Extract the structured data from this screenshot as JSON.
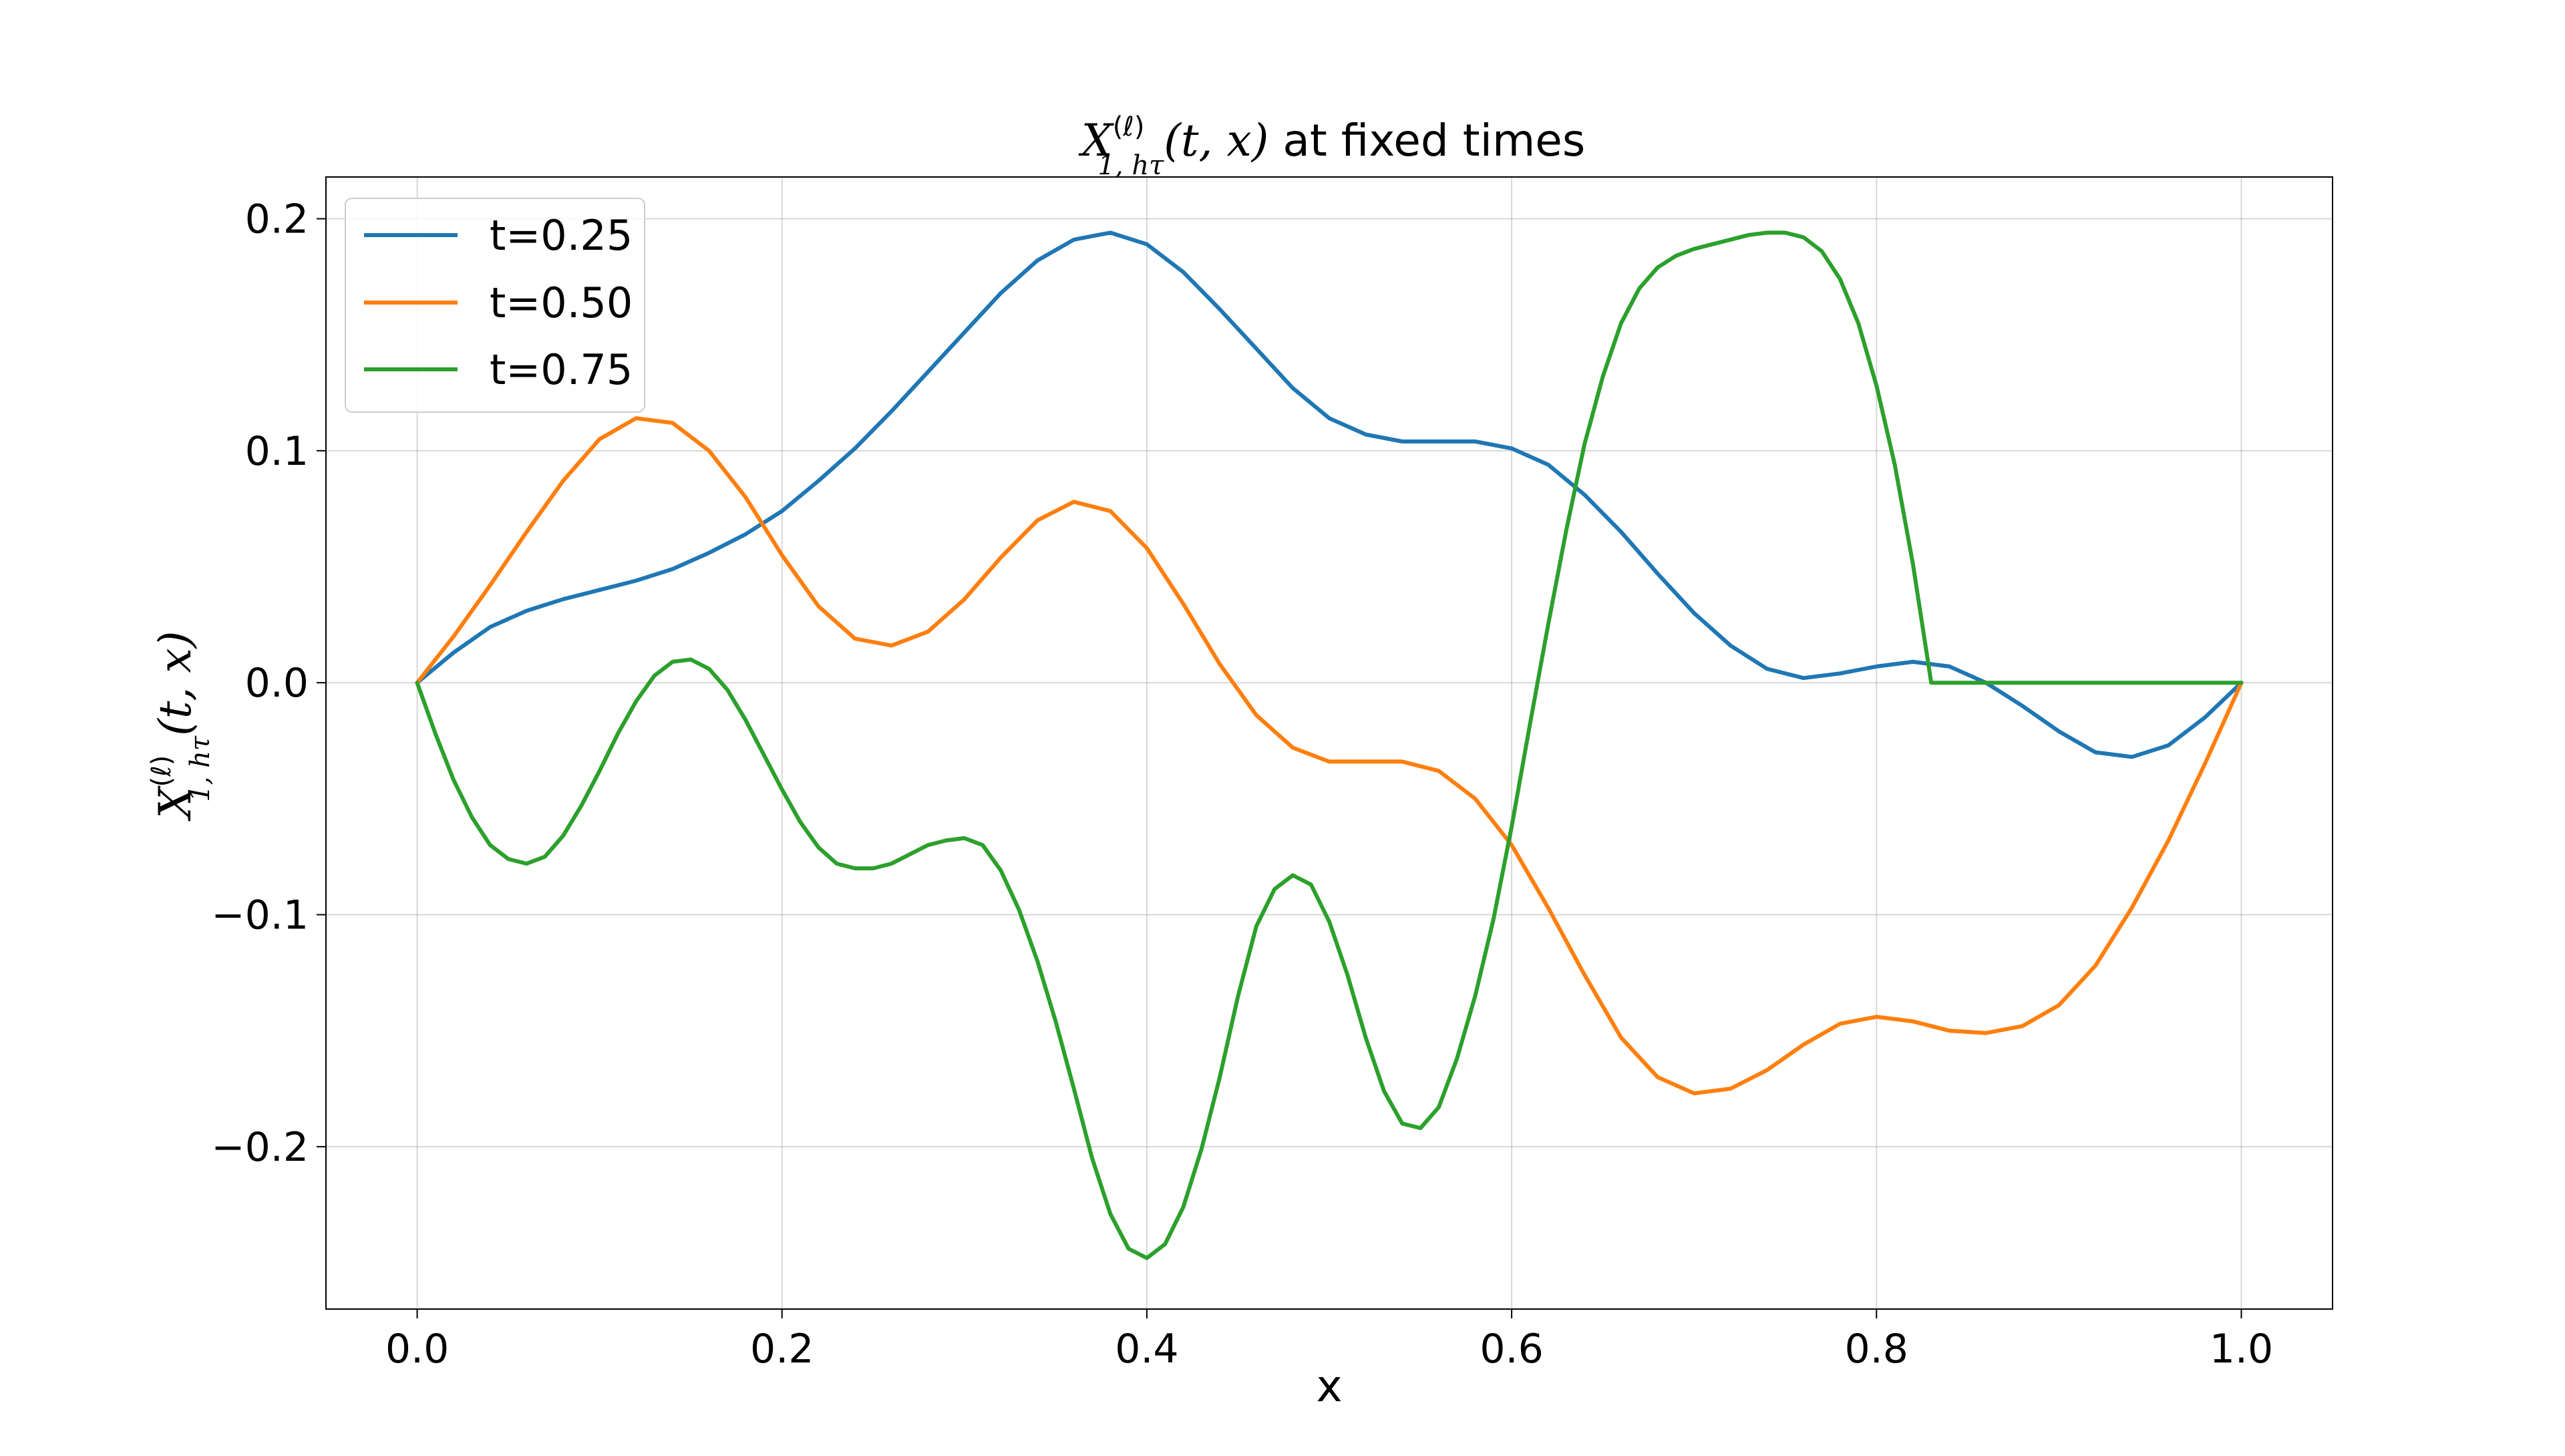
{
  "chart_data": {
    "type": "line",
    "title": {
      "prefix": "",
      "symbol": "X",
      "superscript": "(ℓ)",
      "subscript": "1, hτ",
      "args": "(t, x)",
      "suffix": " at fixed times"
    },
    "xlabel": "x",
    "ylabel": {
      "symbol": "X",
      "superscript": "(ℓ)",
      "subscript": "1, hτ",
      "args": "(t, x)"
    },
    "xlim": [
      -0.05,
      1.05
    ],
    "ylim": [
      -0.27,
      0.218
    ],
    "xticks": [
      0.0,
      0.2,
      0.4,
      0.6,
      0.8,
      1.0
    ],
    "xtick_labels": [
      "0.0",
      "0.2",
      "0.4",
      "0.6",
      "0.8",
      "1.0"
    ],
    "yticks": [
      -0.2,
      -0.1,
      0.0,
      0.1,
      0.2
    ],
    "ytick_labels": [
      "−0.2",
      "−0.1",
      "0.0",
      "0.1",
      "0.2"
    ],
    "grid": true,
    "legend_position": "top-left",
    "series": [
      {
        "name": "t=0.25",
        "color": "#1f77b4",
        "x": [
          0.0,
          0.02,
          0.04,
          0.06,
          0.08,
          0.1,
          0.12,
          0.14,
          0.16,
          0.18,
          0.2,
          0.22,
          0.24,
          0.26,
          0.28,
          0.3,
          0.32,
          0.34,
          0.36,
          0.38,
          0.4,
          0.42,
          0.44,
          0.46,
          0.48,
          0.5,
          0.52,
          0.54,
          0.56,
          0.58,
          0.6,
          0.62,
          0.64,
          0.66,
          0.68,
          0.7,
          0.72,
          0.74,
          0.76,
          0.78,
          0.8,
          0.82,
          0.84,
          0.86,
          0.88,
          0.9,
          0.92,
          0.94,
          0.96,
          0.98,
          1.0
        ],
        "y": [
          0.0,
          0.013,
          0.024,
          0.031,
          0.036,
          0.04,
          0.044,
          0.049,
          0.056,
          0.064,
          0.074,
          0.087,
          0.101,
          0.117,
          0.134,
          0.151,
          0.168,
          0.182,
          0.191,
          0.194,
          0.189,
          0.177,
          0.161,
          0.144,
          0.127,
          0.114,
          0.107,
          0.104,
          0.104,
          0.104,
          0.101,
          0.094,
          0.081,
          0.065,
          0.047,
          0.03,
          0.016,
          0.006,
          0.002,
          0.004,
          0.007,
          0.009,
          0.007,
          0.0,
          -0.01,
          -0.021,
          -0.03,
          -0.032,
          -0.027,
          -0.015,
          0.0
        ]
      },
      {
        "name": "t=0.50",
        "color": "#ff7f0e",
        "x": [
          0.0,
          0.02,
          0.04,
          0.06,
          0.08,
          0.1,
          0.12,
          0.14,
          0.16,
          0.18,
          0.2,
          0.22,
          0.24,
          0.26,
          0.28,
          0.3,
          0.32,
          0.34,
          0.36,
          0.38,
          0.4,
          0.42,
          0.44,
          0.46,
          0.48,
          0.5,
          0.52,
          0.54,
          0.56,
          0.58,
          0.6,
          0.62,
          0.64,
          0.66,
          0.68,
          0.7,
          0.72,
          0.74,
          0.76,
          0.78,
          0.8,
          0.82,
          0.84,
          0.86,
          0.88,
          0.9,
          0.92,
          0.94,
          0.96,
          0.98,
          1.0
        ],
        "y": [
          0.0,
          0.02,
          0.042,
          0.065,
          0.087,
          0.105,
          0.114,
          0.112,
          0.1,
          0.08,
          0.055,
          0.033,
          0.019,
          0.016,
          0.022,
          0.036,
          0.054,
          0.07,
          0.078,
          0.074,
          0.058,
          0.034,
          0.008,
          -0.014,
          -0.028,
          -0.034,
          -0.034,
          -0.034,
          -0.038,
          -0.05,
          -0.07,
          -0.097,
          -0.126,
          -0.153,
          -0.17,
          -0.177,
          -0.175,
          -0.167,
          -0.156,
          -0.147,
          -0.144,
          -0.146,
          -0.15,
          -0.151,
          -0.148,
          -0.139,
          -0.122,
          -0.097,
          -0.068,
          -0.035,
          0.0
        ]
      },
      {
        "name": "t=0.75",
        "color": "#2ca02c",
        "x": [
          0.0,
          0.01,
          0.02,
          0.03,
          0.04,
          0.05,
          0.06,
          0.07,
          0.08,
          0.09,
          0.1,
          0.11,
          0.12,
          0.13,
          0.14,
          0.15,
          0.16,
          0.17,
          0.18,
          0.19,
          0.2,
          0.21,
          0.22,
          0.23,
          0.24,
          0.25,
          0.26,
          0.27,
          0.28,
          0.29,
          0.3,
          0.31,
          0.32,
          0.33,
          0.34,
          0.35,
          0.36,
          0.37,
          0.38,
          0.39,
          0.4,
          0.41,
          0.42,
          0.43,
          0.44,
          0.45,
          0.46,
          0.47,
          0.48,
          0.49,
          0.5,
          0.51,
          0.52,
          0.53,
          0.54,
          0.55,
          0.56,
          0.57,
          0.58,
          0.59,
          0.6,
          0.61,
          0.62,
          0.63,
          0.64,
          0.65,
          0.66,
          0.67,
          0.68,
          0.69,
          0.7,
          0.71,
          0.72,
          0.73,
          0.74,
          0.75,
          0.76,
          0.77,
          0.78,
          0.79,
          0.8,
          0.81,
          0.82,
          0.83,
          0.84,
          0.85,
          0.86,
          0.87,
          0.88,
          0.89,
          0.9,
          0.91,
          0.92,
          0.93,
          0.94,
          0.95,
          0.96,
          0.97,
          0.98,
          0.99,
          1.0
        ],
        "y": [
          0.0,
          -0.022,
          -0.042,
          -0.058,
          -0.07,
          -0.076,
          -0.078,
          -0.075,
          -0.066,
          -0.053,
          -0.038,
          -0.022,
          -0.008,
          0.003,
          0.009,
          0.01,
          0.006,
          -0.003,
          -0.016,
          -0.031,
          -0.046,
          -0.06,
          -0.071,
          -0.078,
          -0.08,
          -0.08,
          -0.078,
          -0.074,
          -0.07,
          -0.068,
          -0.067,
          -0.07,
          -0.081,
          -0.098,
          -0.12,
          -0.146,
          -0.175,
          -0.205,
          -0.229,
          -0.244,
          -0.248,
          -0.242,
          -0.226,
          -0.201,
          -0.17,
          -0.135,
          -0.105,
          -0.089,
          -0.083,
          -0.087,
          -0.103,
          -0.126,
          -0.153,
          -0.176,
          -0.19,
          -0.192,
          -0.183,
          -0.162,
          -0.135,
          -0.102,
          -0.062,
          -0.018,
          0.025,
          0.066,
          0.103,
          0.132,
          0.155,
          0.17,
          0.179,
          0.184,
          0.187,
          0.189,
          0.191,
          0.193,
          0.194,
          0.194,
          0.192,
          0.186,
          0.174,
          0.155,
          0.128,
          0.094,
          0.051,
          0.0,
          0.0,
          0.0,
          0.0,
          0.0,
          0.0,
          0.0,
          0.0,
          0.0,
          0.0,
          0.0,
          0.0,
          0.0,
          0.0,
          0.0,
          0.0,
          0.0,
          0.0
        ]
      }
    ]
  }
}
